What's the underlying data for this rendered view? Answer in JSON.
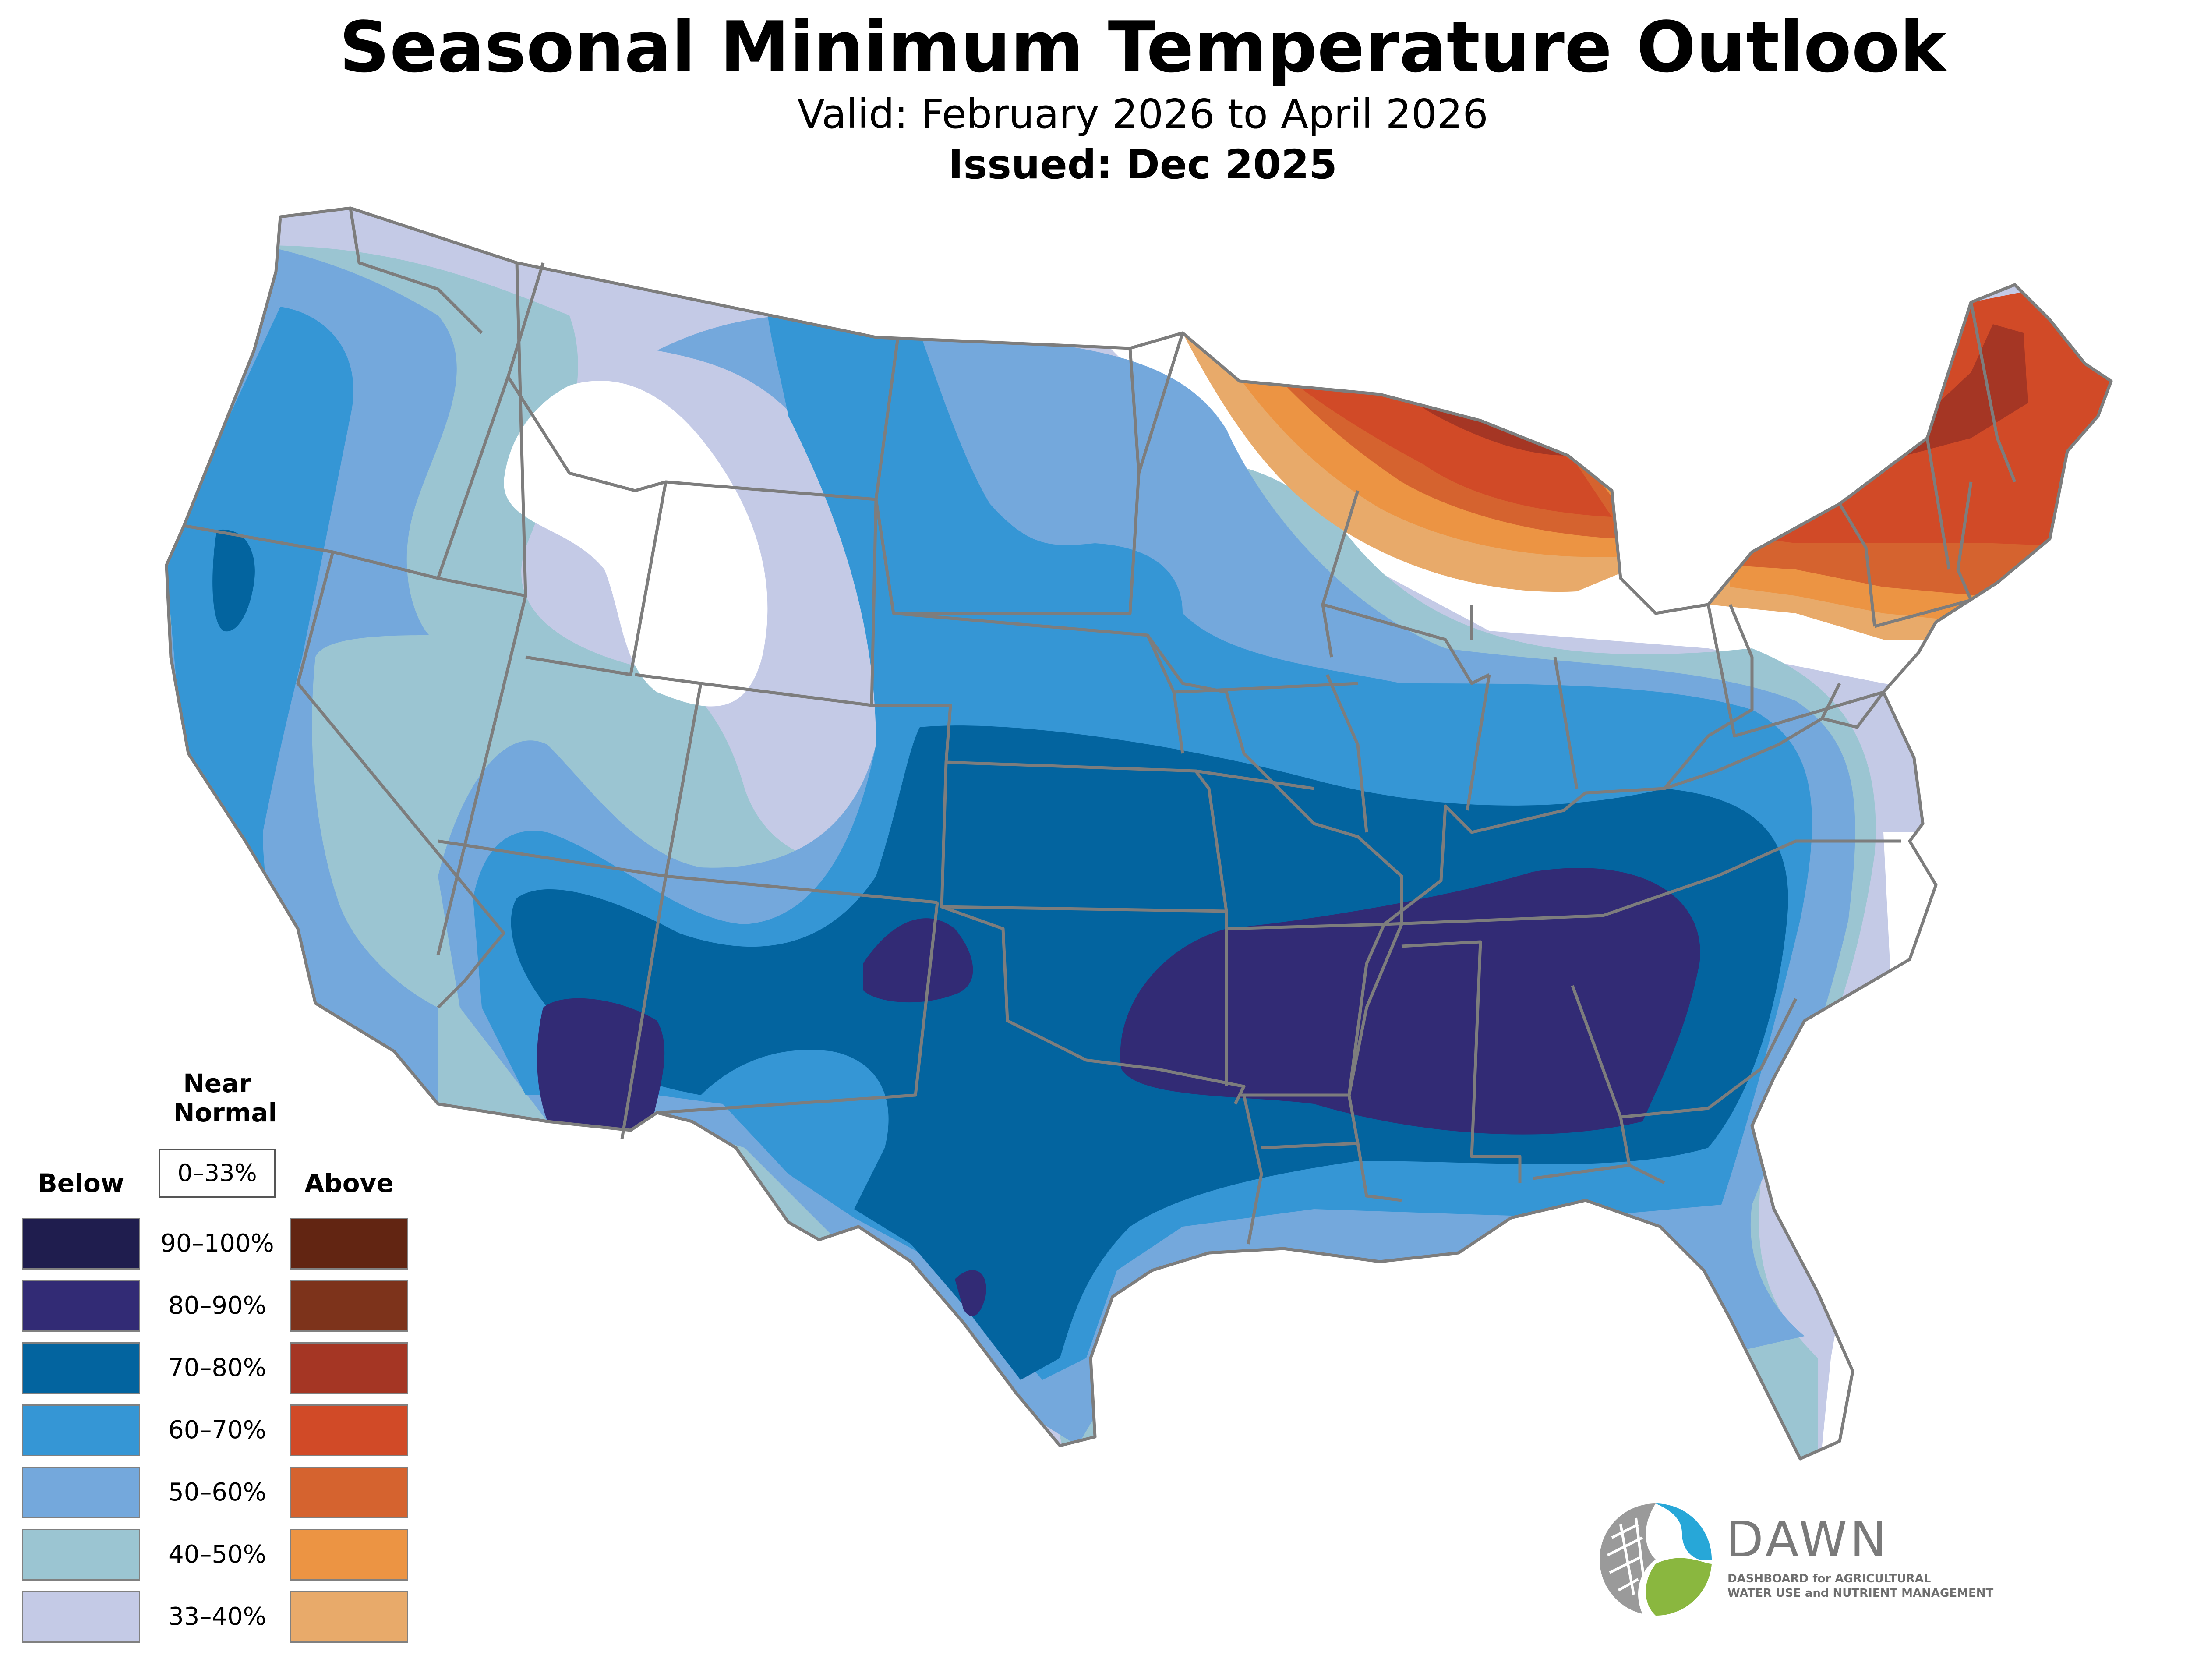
{
  "header": {
    "title": "Seasonal Minimum Temperature Outlook",
    "valid": "Valid: February 2026 to April 2026",
    "issued": "Issued: Dec 2025"
  },
  "legend": {
    "below_label": "Below",
    "above_label": "Above",
    "near_normal_label": "Near\nNormal",
    "near_normal_range": "0–33%",
    "rows": [
      {
        "range": "90–100%",
        "below_color": "#1f1d4e",
        "above_color": "#622512"
      },
      {
        "range": "80–90%",
        "below_color": "#322b75",
        "above_color": "#7d331b"
      },
      {
        "range": "70–80%",
        "below_color": "#03649f",
        "above_color": "#a53624"
      },
      {
        "range": "60–70%",
        "below_color": "#3596d5",
        "above_color": "#d14a27"
      },
      {
        "range": "50–60%",
        "below_color": "#74a8dc",
        "above_color": "#d5632f"
      },
      {
        "range": "40–50%",
        "below_color": "#9bc5d2",
        "above_color": "#ec9443"
      },
      {
        "range": "33–40%",
        "below_color": "#c4cae6",
        "above_color": "#e8aa6a"
      }
    ]
  },
  "logo": {
    "name": "DAWN",
    "tagline_line1": "DASHBOARD for AGRICULTURAL",
    "tagline_line2": "WATER USE and NUTRIENT MANAGEMENT"
  },
  "map": {
    "region": "Contiguous United States",
    "colors": {
      "below_33": "#c4cae6",
      "below_40": "#9bc5d2",
      "below_50": "#74a8dc",
      "below_60": "#3596d5",
      "below_70": "#03649f",
      "below_80": "#322b75",
      "above_33": "#e8aa6a",
      "above_40": "#ec9443",
      "above_50": "#d5632f",
      "above_60": "#d14a27",
      "above_70": "#a53624",
      "border": "#7d7d7d"
    }
  }
}
